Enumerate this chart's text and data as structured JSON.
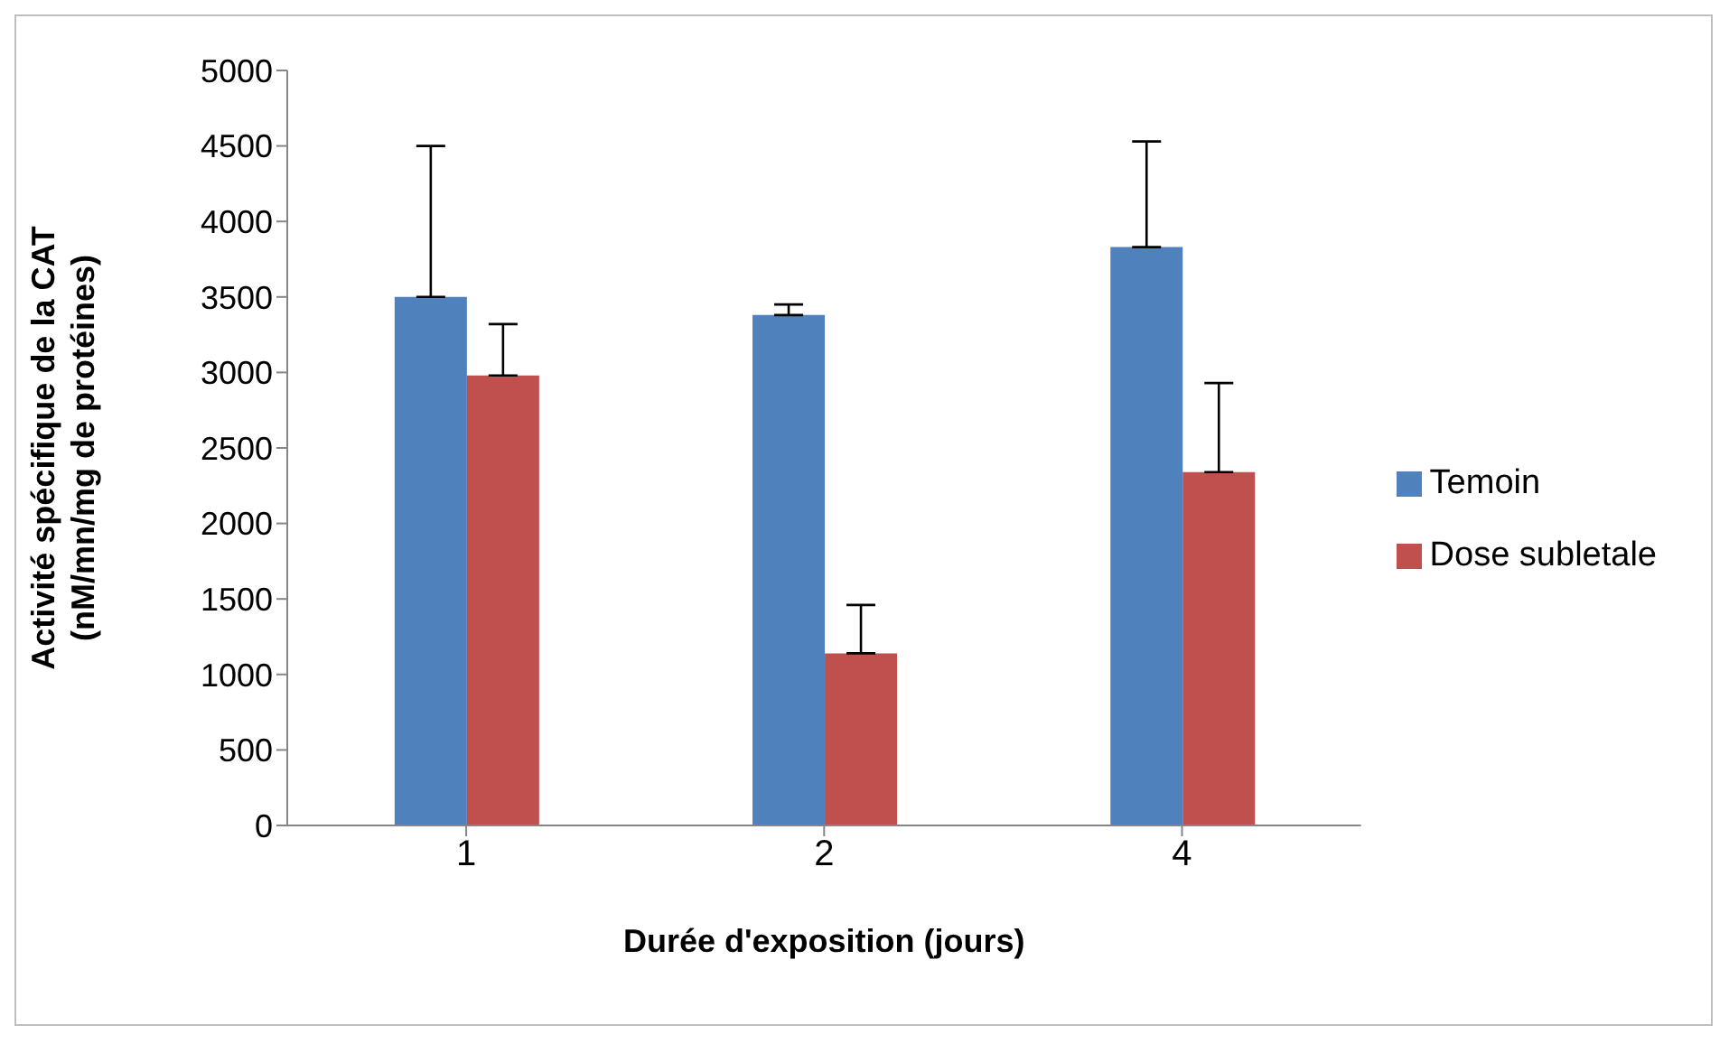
{
  "chart_data": {
    "type": "bar",
    "xlabel": "Durée d'exposition (jours)",
    "ylabel": "Activité spécifique de la CAT\n(nM/mn/mg de protéines)",
    "categories": [
      "1",
      "2",
      "4"
    ],
    "series": [
      {
        "name": "Temoin",
        "color": "#4f81bd",
        "values": [
          3500,
          3380,
          3830
        ],
        "errors": [
          [
            3500,
            4500
          ],
          [
            3380,
            3450
          ],
          [
            3830,
            4530
          ]
        ]
      },
      {
        "name": "Dose subletale",
        "color": "#c0504d",
        "values": [
          2980,
          1140,
          2340
        ],
        "errors": [
          [
            2980,
            3320
          ],
          [
            1140,
            1460
          ],
          [
            2340,
            2930
          ]
        ]
      }
    ],
    "ylim": [
      0,
      5000
    ],
    "yticks": [
      0,
      500,
      1000,
      1500,
      2000,
      2500,
      3000,
      3500,
      4000,
      4500,
      5000
    ],
    "grid": false,
    "legend": "right"
  }
}
